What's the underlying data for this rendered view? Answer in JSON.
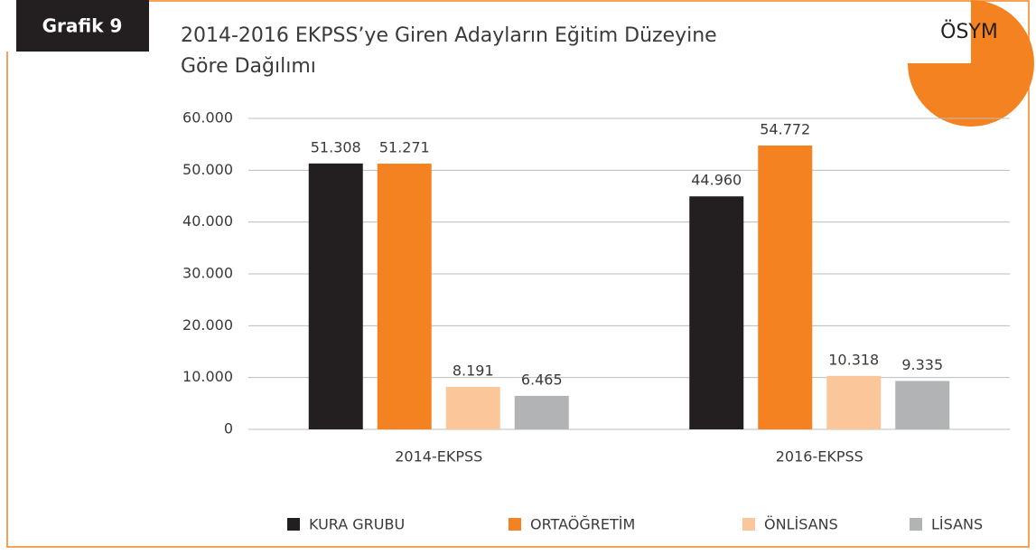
{
  "chart_data": {
    "type": "bar",
    "badge": "Grafik 9",
    "logo": "ÖSYM",
    "title": [
      "2014-2016 EKPSS’ye Giren Adayların Eğitim Düzeyine",
      "Göre Dağılımı"
    ],
    "categories": [
      "2014-EKPSS",
      "2016-EKPSS"
    ],
    "series": [
      {
        "name": "KURA GRUBU",
        "color": "#231f20",
        "values": [
          51308,
          44960
        ],
        "value_labels": [
          "51.308",
          "44.960"
        ]
      },
      {
        "name": "ORTAÖĞRETİM",
        "color": "#f58220",
        "values": [
          51271,
          54772
        ],
        "value_labels": [
          "51.271",
          "54.772"
        ]
      },
      {
        "name": "ÖNLİSANS",
        "color": "#fbc79a",
        "values": [
          8191,
          10318
        ],
        "value_labels": [
          "8.191",
          "10.318"
        ]
      },
      {
        "name": "LİSANS",
        "color": "#b2b3b5",
        "values": [
          6465,
          9335
        ],
        "value_labels": [
          "6.465",
          "9.335"
        ]
      }
    ],
    "ylim": [
      0,
      60000
    ],
    "yticks": [
      0,
      {
        "value": 10000,
        "label": "10.000"
      },
      {
        "value": 20000,
        "label": "20.000"
      },
      {
        "value": 30000,
        "label": "30.000"
      },
      {
        "value": 40000,
        "label": "40.000"
      },
      {
        "value": 50000,
        "label": "50.000"
      },
      {
        "value": 60000,
        "label": "60.000"
      }
    ],
    "grid": true,
    "legend": "bottom"
  }
}
